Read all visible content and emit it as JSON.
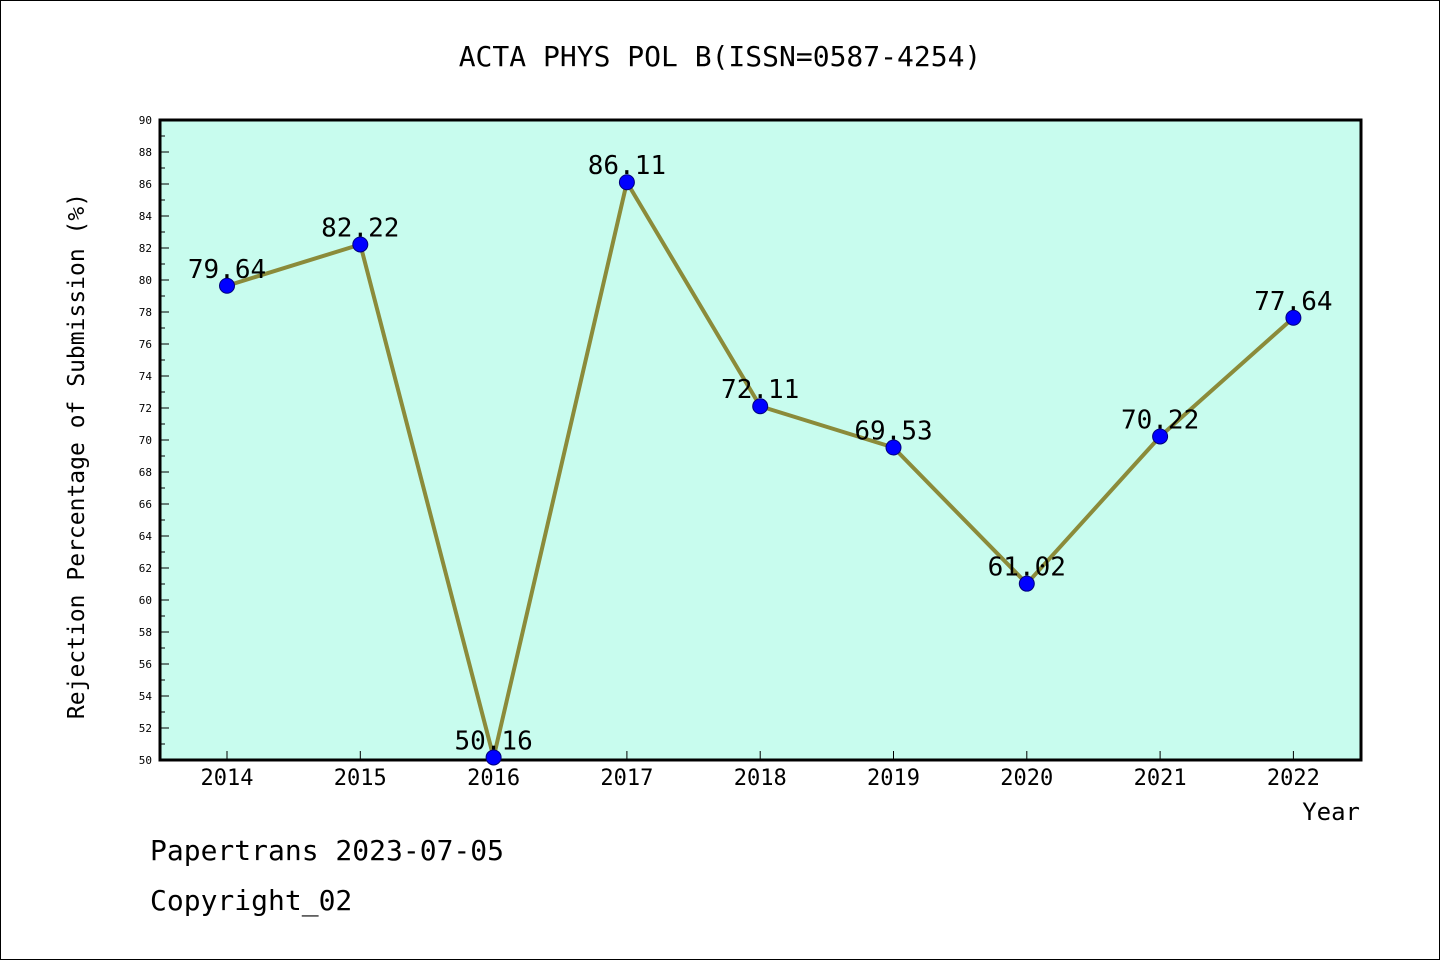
{
  "chart_data": {
    "type": "line",
    "title": "ACTA PHYS POL B(ISSN=0587-4254)",
    "xlabel": "Year",
    "ylabel": "Rejection Percentage of Submission (%)",
    "categories": [
      "2014",
      "2015",
      "2016",
      "2017",
      "2018",
      "2019",
      "2020",
      "2021",
      "2022"
    ],
    "series": [
      {
        "values": [
          79.64,
          82.22,
          50.16,
          86.11,
          72.11,
          69.53,
          61.02,
          70.22,
          77.64
        ],
        "data_labels": [
          "79.64",
          "82.22",
          "50.16",
          "86.11",
          "72.11",
          "69.53",
          "61.02",
          "70.22",
          "77.64"
        ],
        "line_color": "#8B8B3A",
        "marker_color": "#0000FF"
      }
    ],
    "ylim": [
      50,
      90
    ],
    "yticks": [
      "50",
      "52",
      "54",
      "56",
      "58",
      "60",
      "62",
      "64",
      "66",
      "68",
      "70",
      "72",
      "74",
      "76",
      "78",
      "80",
      "82",
      "84",
      "86",
      "88",
      "90"
    ],
    "plot_background": "#C8FCEE",
    "grid": false,
    "legend": "none"
  },
  "footer": {
    "line1": "Papertrans 2023-07-05",
    "line2": "Copyright_02"
  }
}
